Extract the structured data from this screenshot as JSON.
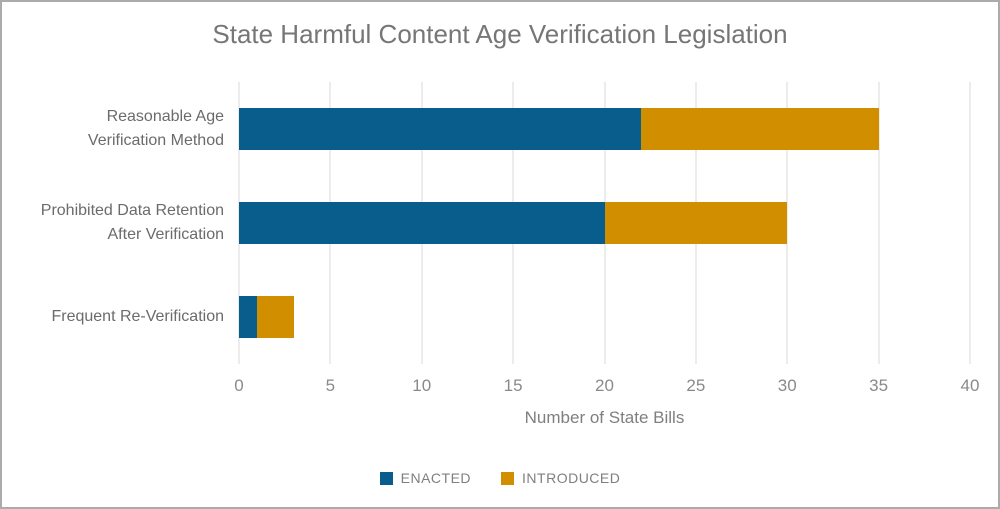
{
  "chart_data": {
    "type": "bar",
    "orientation": "horizontal",
    "stacked": true,
    "title": "State Harmful Content Age Verification Legislation",
    "xlabel": "Number of State Bills",
    "ylabel": "",
    "categories": [
      "Reasonable Age\nVerification Method",
      "Prohibited Data Retention\nAfter Verification",
      "Frequent Re-Verification"
    ],
    "series": [
      {
        "name": "ENACTED",
        "color": "#085d8c",
        "values": [
          22,
          20,
          1
        ]
      },
      {
        "name": "INTRODUCED",
        "color": "#d18f00",
        "values": [
          13,
          10,
          2
        ]
      }
    ],
    "totals": [
      35,
      30,
      3
    ],
    "xlim": [
      0,
      40
    ],
    "xticks": [
      0,
      5,
      10,
      15,
      20,
      25,
      30,
      35,
      40
    ],
    "grid": "vertical",
    "gridline_color": "#d9d9d9",
    "legend_position": "bottom"
  },
  "frame": {
    "border_color": "#ababab",
    "background": "#ffffff"
  }
}
